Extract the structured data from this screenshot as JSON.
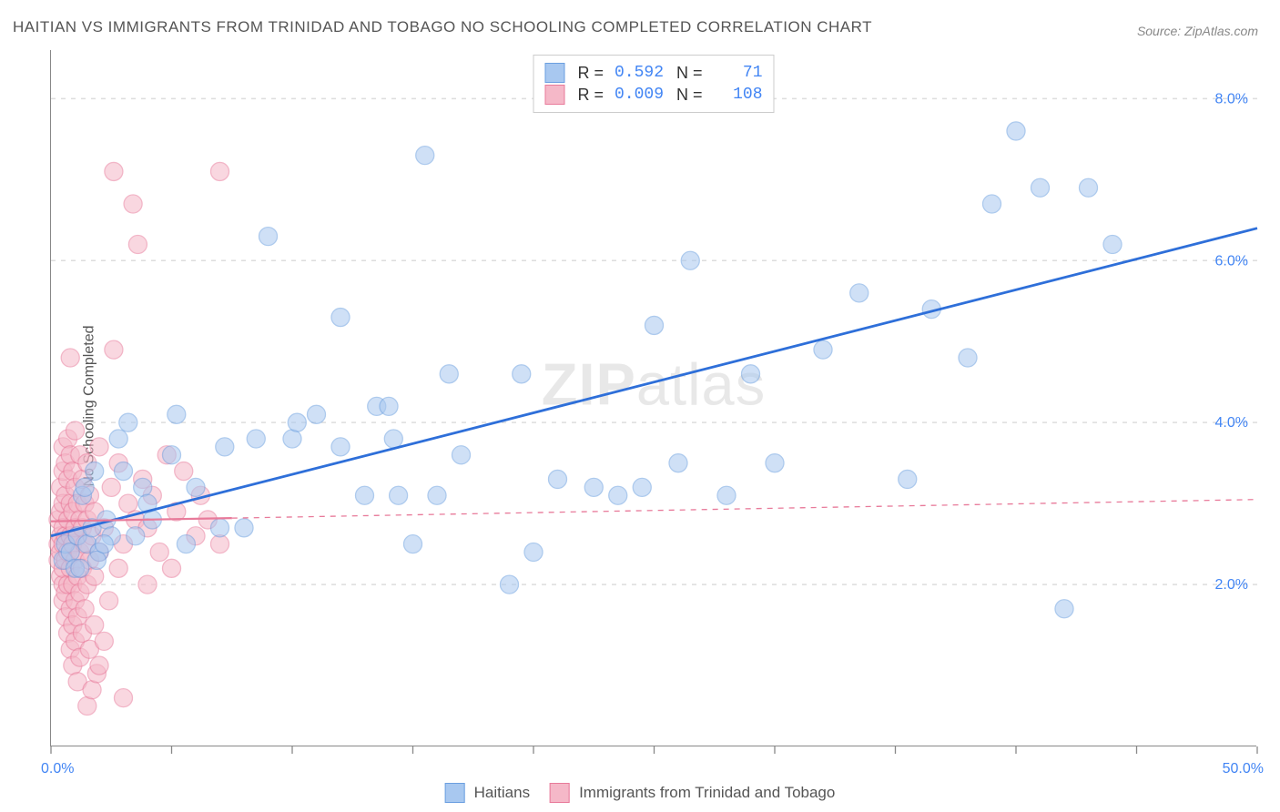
{
  "title": "HAITIAN VS IMMIGRANTS FROM TRINIDAD AND TOBAGO NO SCHOOLING COMPLETED CORRELATION CHART",
  "source_label": "Source: ",
  "source_name": "ZipAtlas.com",
  "y_axis_label": "No Schooling Completed",
  "watermark": {
    "part1": "ZIP",
    "part2": "atlas"
  },
  "chart": {
    "type": "scatter",
    "background_color": "#ffffff",
    "grid_color": "#dddddd",
    "axis_color": "#888888",
    "xlim": [
      0,
      50
    ],
    "ylim": [
      0,
      8.6
    ],
    "x_ticks": [
      0,
      5,
      10,
      15,
      20,
      25,
      30,
      35,
      40,
      45,
      50
    ],
    "x_tick_labels": {
      "0": "0.0%",
      "50": "50.0%"
    },
    "y_ticks": [
      2.0,
      4.0,
      6.0,
      8.0
    ],
    "y_tick_labels": [
      "2.0%",
      "4.0%",
      "6.0%",
      "8.0%"
    ],
    "marker_radius": 10,
    "marker_opacity": 0.55,
    "series": [
      {
        "name": "Haitians",
        "color_fill": "#a8c8f0",
        "color_stroke": "#6b9fe0",
        "r_value": "0.592",
        "n_value": "71",
        "trend": {
          "x1": 0,
          "y1": 2.6,
          "x2": 50,
          "y2": 6.4,
          "color": "#2e6fd9",
          "width": 2.8,
          "dash": ""
        },
        "points": [
          [
            0.5,
            2.3
          ],
          [
            0.6,
            2.5
          ],
          [
            0.8,
            2.4
          ],
          [
            1.0,
            2.2
          ],
          [
            1.1,
            2.6
          ],
          [
            1.3,
            3.1
          ],
          [
            1.4,
            3.2
          ],
          [
            1.5,
            2.5
          ],
          [
            1.7,
            2.7
          ],
          [
            1.8,
            3.4
          ],
          [
            2.0,
            2.4
          ],
          [
            2.3,
            2.8
          ],
          [
            2.5,
            2.6
          ],
          [
            2.8,
            3.8
          ],
          [
            3.0,
            3.4
          ],
          [
            3.2,
            4.0
          ],
          [
            3.8,
            3.2
          ],
          [
            4.0,
            3.0
          ],
          [
            5.0,
            3.6
          ],
          [
            5.2,
            4.1
          ],
          [
            5.6,
            2.5
          ],
          [
            7.0,
            2.7
          ],
          [
            7.2,
            3.7
          ],
          [
            8.0,
            2.7
          ],
          [
            9.0,
            6.3
          ],
          [
            10.0,
            3.8
          ],
          [
            10.2,
            4.0
          ],
          [
            11.0,
            4.1
          ],
          [
            12.0,
            3.7
          ],
          [
            12.0,
            5.3
          ],
          [
            13.0,
            3.1
          ],
          [
            13.5,
            4.2
          ],
          [
            14.0,
            4.2
          ],
          [
            14.2,
            3.8
          ],
          [
            14.4,
            3.1
          ],
          [
            15.0,
            2.5
          ],
          [
            15.5,
            7.3
          ],
          [
            16.0,
            3.1
          ],
          [
            16.5,
            4.6
          ],
          [
            17.0,
            3.6
          ],
          [
            19.0,
            2.0
          ],
          [
            19.5,
            4.6
          ],
          [
            20.0,
            2.4
          ],
          [
            21.0,
            3.3
          ],
          [
            22.5,
            3.2
          ],
          [
            23.5,
            3.1
          ],
          [
            24.5,
            3.2
          ],
          [
            25.0,
            5.2
          ],
          [
            26.0,
            3.5
          ],
          [
            26.5,
            6.0
          ],
          [
            28.0,
            3.1
          ],
          [
            29.0,
            4.6
          ],
          [
            30.0,
            3.5
          ],
          [
            32.0,
            4.9
          ],
          [
            33.5,
            5.6
          ],
          [
            35.5,
            3.3
          ],
          [
            36.5,
            5.4
          ],
          [
            38.0,
            4.8
          ],
          [
            39.0,
            6.7
          ],
          [
            40.0,
            7.6
          ],
          [
            41.0,
            6.9
          ],
          [
            42.0,
            1.7
          ],
          [
            43.0,
            6.9
          ],
          [
            44.0,
            6.2
          ],
          [
            1.2,
            2.2
          ],
          [
            1.9,
            2.3
          ],
          [
            2.2,
            2.5
          ],
          [
            3.5,
            2.6
          ],
          [
            4.2,
            2.8
          ],
          [
            6.0,
            3.2
          ],
          [
            8.5,
            3.8
          ]
        ]
      },
      {
        "name": "Immigrants from Trinidad and Tobago",
        "color_fill": "#f5b8c8",
        "color_stroke": "#e87a9a",
        "r_value": "0.009",
        "n_value": "108",
        "trend_solid": {
          "x1": 0,
          "y1": 2.78,
          "x2": 7.5,
          "y2": 2.82,
          "color": "#e87a9a",
          "width": 2.2
        },
        "trend_dash": {
          "x1": 7.5,
          "y1": 2.82,
          "x2": 50,
          "y2": 3.05,
          "color": "#e87a9a",
          "width": 1.3,
          "dash": "6,6"
        },
        "points": [
          [
            0.3,
            2.3
          ],
          [
            0.3,
            2.5
          ],
          [
            0.3,
            2.8
          ],
          [
            0.4,
            2.1
          ],
          [
            0.4,
            2.4
          ],
          [
            0.4,
            2.6
          ],
          [
            0.4,
            2.9
          ],
          [
            0.4,
            3.2
          ],
          [
            0.5,
            1.8
          ],
          [
            0.5,
            2.0
          ],
          [
            0.5,
            2.2
          ],
          [
            0.5,
            2.5
          ],
          [
            0.5,
            2.7
          ],
          [
            0.5,
            3.0
          ],
          [
            0.5,
            3.4
          ],
          [
            0.5,
            3.7
          ],
          [
            0.6,
            1.6
          ],
          [
            0.6,
            1.9
          ],
          [
            0.6,
            2.3
          ],
          [
            0.6,
            2.6
          ],
          [
            0.6,
            3.1
          ],
          [
            0.6,
            3.5
          ],
          [
            0.7,
            1.4
          ],
          [
            0.7,
            2.0
          ],
          [
            0.7,
            2.4
          ],
          [
            0.7,
            2.8
          ],
          [
            0.7,
            3.3
          ],
          [
            0.7,
            3.8
          ],
          [
            0.8,
            1.2
          ],
          [
            0.8,
            1.7
          ],
          [
            0.8,
            2.2
          ],
          [
            0.8,
            2.6
          ],
          [
            0.8,
            3.0
          ],
          [
            0.8,
            3.6
          ],
          [
            0.8,
            4.8
          ],
          [
            0.9,
            1.0
          ],
          [
            0.9,
            1.5
          ],
          [
            0.9,
            2.0
          ],
          [
            0.9,
            2.5
          ],
          [
            0.9,
            2.9
          ],
          [
            0.9,
            3.4
          ],
          [
            1.0,
            1.3
          ],
          [
            1.0,
            1.8
          ],
          [
            1.0,
            2.3
          ],
          [
            1.0,
            2.7
          ],
          [
            1.0,
            3.2
          ],
          [
            1.0,
            3.9
          ],
          [
            1.1,
            0.8
          ],
          [
            1.1,
            1.6
          ],
          [
            1.1,
            2.1
          ],
          [
            1.1,
            2.6
          ],
          [
            1.1,
            3.0
          ],
          [
            1.2,
            1.1
          ],
          [
            1.2,
            1.9
          ],
          [
            1.2,
            2.4
          ],
          [
            1.2,
            2.8
          ],
          [
            1.2,
            3.6
          ],
          [
            1.3,
            1.4
          ],
          [
            1.3,
            2.2
          ],
          [
            1.3,
            2.7
          ],
          [
            1.3,
            3.3
          ],
          [
            1.4,
            1.7
          ],
          [
            1.4,
            2.5
          ],
          [
            1.4,
            3.0
          ],
          [
            1.5,
            0.5
          ],
          [
            1.5,
            2.0
          ],
          [
            1.5,
            2.8
          ],
          [
            1.5,
            3.5
          ],
          [
            1.6,
            1.2
          ],
          [
            1.6,
            2.3
          ],
          [
            1.6,
            3.1
          ],
          [
            1.7,
            0.7
          ],
          [
            1.7,
            2.6
          ],
          [
            1.8,
            1.5
          ],
          [
            1.8,
            2.1
          ],
          [
            1.8,
            2.9
          ],
          [
            1.9,
            0.9
          ],
          [
            2.0,
            1.0
          ],
          [
            2.0,
            2.4
          ],
          [
            2.0,
            3.7
          ],
          [
            2.2,
            1.3
          ],
          [
            2.2,
            2.7
          ],
          [
            2.4,
            1.8
          ],
          [
            2.5,
            3.2
          ],
          [
            2.6,
            4.9
          ],
          [
            2.6,
            7.1
          ],
          [
            2.8,
            2.2
          ],
          [
            2.8,
            3.5
          ],
          [
            3.0,
            0.6
          ],
          [
            3.0,
            2.5
          ],
          [
            3.2,
            3.0
          ],
          [
            3.4,
            6.7
          ],
          [
            3.5,
            2.8
          ],
          [
            3.6,
            6.2
          ],
          [
            3.8,
            3.3
          ],
          [
            4.0,
            2.0
          ],
          [
            4.0,
            2.7
          ],
          [
            4.2,
            3.1
          ],
          [
            4.5,
            2.4
          ],
          [
            4.8,
            3.6
          ],
          [
            5.0,
            2.2
          ],
          [
            5.2,
            2.9
          ],
          [
            5.5,
            3.4
          ],
          [
            6.0,
            2.6
          ],
          [
            6.2,
            3.1
          ],
          [
            6.5,
            2.8
          ],
          [
            7.0,
            7.1
          ],
          [
            7.0,
            2.5
          ]
        ]
      }
    ]
  },
  "legend_top": {
    "r_label": "R =",
    "n_label": "N ="
  },
  "legend_bottom": {
    "label1": "Haitians",
    "label2": "Immigrants from Trinidad and Tobago"
  }
}
